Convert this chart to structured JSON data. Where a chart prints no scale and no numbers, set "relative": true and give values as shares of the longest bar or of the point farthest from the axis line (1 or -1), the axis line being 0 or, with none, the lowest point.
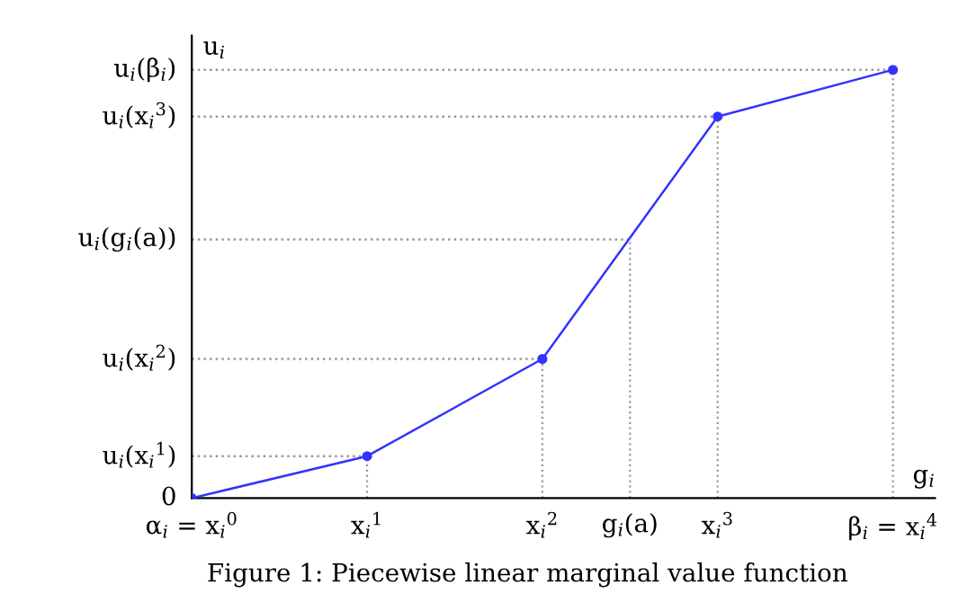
{
  "chart_data": {
    "type": "line",
    "relative": true,
    "xlabel": "g$_{i}$",
    "ylabel": "u$_{i}$",
    "x": [
      0,
      1,
      2,
      3,
      4
    ],
    "series": [
      {
        "color": "#3333ff",
        "values": [
          0,
          0.098,
          0.325,
          0.891,
          1
        ]
      }
    ],
    "marker": "circle",
    "line_style": "solid",
    "legend": false,
    "xlim": [
      0,
      4.24
    ],
    "xticks": [
      {
        "value": 0,
        "label": "α$_{i}$ = x$_{i}$$^{0}$"
      },
      {
        "value": 1,
        "label": "x$_{i}$$^{1}$"
      },
      {
        "value": 2,
        "label": "x$_{i}$$^{2}$"
      },
      {
        "value": 2.5,
        "label": "g$_{i}$(a)"
      },
      {
        "value": 3,
        "label": "x$_{i}$$^{3}$"
      },
      {
        "value": 4,
        "label": "β$_{i}$ = x$_{i}$$^{4}$"
      }
    ],
    "ref_lines": [
      {
        "axis": "y",
        "value": 0.098,
        "label": "u$_{i}$(x$_{i}$$^{1}$)",
        "color": "#999999",
        "line_style": "dotted"
      },
      {
        "axis": "y",
        "value": 0.325,
        "label": "u$_{i}$(x$_{i}$$^{2}$)",
        "color": "#999999",
        "line_style": "dotted"
      },
      {
        "axis": "y",
        "value": 0.604,
        "label": "u$_{i}$(g$_{i}$(a))",
        "color": "#999999",
        "line_style": "dotted"
      },
      {
        "axis": "y",
        "value": 0.891,
        "label": "u$_{i}$(x$_{i}$$^{3}$)",
        "color": "#999999",
        "line_style": "dotted"
      },
      {
        "axis": "y",
        "value": 1,
        "label": "u$_{i}$(β$_{i}$)",
        "color": "#999999",
        "line_style": "dotted"
      },
      {
        "axis": "x",
        "value": 1,
        "color": "#999999",
        "line_style": "dotted"
      },
      {
        "axis": "x",
        "value": 2,
        "color": "#999999",
        "line_style": "dotted"
      },
      {
        "axis": "x",
        "value": 2.5,
        "color": "#999999",
        "line_style": "dotted"
      },
      {
        "axis": "x",
        "value": 3,
        "color": "#999999",
        "line_style": "dotted"
      },
      {
        "axis": "x",
        "value": 4,
        "color": "#999999",
        "line_style": "dotted"
      }
    ],
    "annotations": [
      "0",
      "Figure 1: Piecewise linear marginal value function"
    ]
  }
}
